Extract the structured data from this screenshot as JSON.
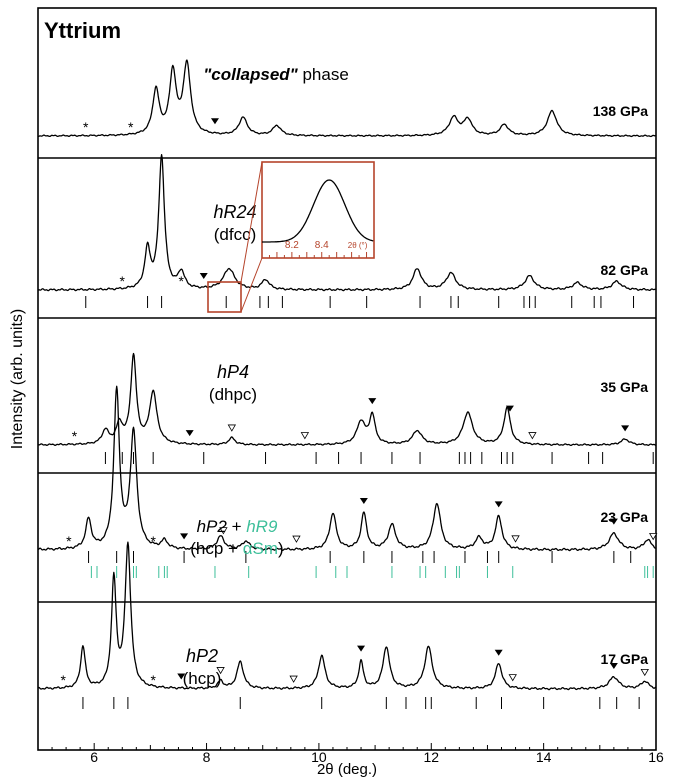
{
  "chart_data": {
    "type": "line",
    "title": "Yttrium",
    "xlabel": "2θ (deg.)",
    "ylabel": "Intensity (arb. units)",
    "xlim": [
      5,
      16
    ],
    "xticks": [
      "6",
      "8",
      "10",
      "12",
      "14",
      "16"
    ],
    "xtick_values": [
      6,
      8,
      10,
      12,
      14,
      16
    ],
    "colors": {
      "line": "#000000",
      "inset": "#b5442b",
      "secondary": "#3dbf9a"
    },
    "panels": [
      {
        "pressure": "138 GPa",
        "phase_label": [
          "\"collapsed\" phase"
        ],
        "baseline": 0,
        "peaks": [
          [
            7.1,
            0.45,
            0.07
          ],
          [
            7.4,
            0.62,
            0.07
          ],
          [
            7.65,
            0.7,
            0.08
          ],
          [
            8.65,
            0.18,
            0.09
          ],
          [
            9.25,
            0.1,
            0.09
          ],
          [
            12.4,
            0.18,
            0.1
          ],
          [
            12.65,
            0.16,
            0.09
          ],
          [
            13.3,
            0.11,
            0.09
          ],
          [
            14.15,
            0.25,
            0.1
          ]
        ],
        "stars": [
          5.85,
          6.65
        ],
        "filled_markers": [
          8.15
        ],
        "open_markers": [],
        "reflections": []
      },
      {
        "pressure": "82 GPa",
        "phase_label": [
          "hR24",
          "(dfcc)"
        ],
        "baseline": 0,
        "peaks": [
          [
            6.95,
            0.28,
            0.06
          ],
          [
            7.2,
            0.95,
            0.06
          ],
          [
            7.55,
            0.12,
            0.07
          ],
          [
            8.4,
            0.15,
            0.12
          ],
          [
            9.05,
            0.07,
            0.08
          ],
          [
            11.75,
            0.15,
            0.09
          ],
          [
            12.35,
            0.12,
            0.1
          ],
          [
            13.75,
            0.1,
            0.1
          ],
          [
            14.6,
            0.05,
            0.1
          ],
          [
            15.3,
            0.06,
            0.1
          ]
        ],
        "stars": [
          6.5,
          7.55
        ],
        "filled_markers": [
          7.95
        ],
        "open_markers": [],
        "reflections": [
          5.85,
          6.95,
          7.2,
          8.35,
          8.95,
          9.1,
          9.35,
          10.2,
          10.85,
          11.8,
          12.35,
          12.48,
          13.2,
          13.65,
          13.75,
          13.85,
          14.5,
          14.9,
          15.02,
          15.6
        ]
      },
      {
        "pressure": "35 GPa",
        "phase_label": [
          "hP4",
          "(dhpc)"
        ],
        "baseline": 0,
        "peaks": [
          [
            6.2,
            0.12,
            0.07
          ],
          [
            6.45,
            0.17,
            0.07
          ],
          [
            6.7,
            0.76,
            0.06
          ],
          [
            7.05,
            0.45,
            0.08
          ],
          [
            8.45,
            0.06,
            0.07
          ],
          [
            10.75,
            0.2,
            0.09
          ],
          [
            10.95,
            0.25,
            0.06
          ],
          [
            11.75,
            0.12,
            0.1
          ],
          [
            12.65,
            0.28,
            0.1
          ],
          [
            13.35,
            0.32,
            0.07
          ],
          [
            15.45,
            0.05,
            0.09
          ]
        ],
        "stars": [
          5.65
        ],
        "filled_markers": [
          7.7,
          10.95,
          13.4,
          15.45
        ],
        "open_markers": [
          8.45,
          9.75,
          13.8
        ],
        "reflections": [
          6.2,
          6.5,
          6.7,
          7.05,
          7.95,
          9.05,
          9.95,
          10.35,
          10.75,
          11.3,
          11.8,
          12.5,
          12.6,
          12.7,
          12.9,
          13.25,
          13.35,
          13.45,
          14.15,
          14.8,
          15.05,
          15.95
        ]
      },
      {
        "pressure": "23 GPa",
        "phase_label": [
          "hP2 + hR9",
          "(hcp + αSm)"
        ],
        "baseline": 0,
        "peaks": [
          [
            5.9,
            0.18,
            0.06
          ],
          [
            6.4,
            0.95,
            0.06
          ],
          [
            6.7,
            0.7,
            0.07
          ],
          [
            7.25,
            0.05,
            0.07
          ],
          [
            8.25,
            0.08,
            0.08
          ],
          [
            8.7,
            0.05,
            0.08
          ],
          [
            10.25,
            0.22,
            0.07
          ],
          [
            10.8,
            0.22,
            0.06
          ],
          [
            11.3,
            0.15,
            0.08
          ],
          [
            12.1,
            0.28,
            0.08
          ],
          [
            12.85,
            0.07,
            0.08
          ],
          [
            13.2,
            0.2,
            0.07
          ],
          [
            15.25,
            0.1,
            0.1
          ],
          [
            15.85,
            0.06,
            0.08
          ]
        ],
        "stars": [
          5.55,
          7.05
        ],
        "filled_markers": [
          7.6,
          10.8,
          13.2,
          15.25
        ],
        "open_markers": [
          8.3,
          9.6,
          13.5,
          15.95
        ],
        "reflections": [
          5.9,
          6.4,
          6.7,
          7.6,
          8.7,
          10.2,
          10.8,
          11.3,
          11.85,
          12.05,
          12.6,
          13.0,
          13.2,
          14.15,
          15.25,
          15.55
        ],
        "secondary_reflections": [
          5.95,
          6.05,
          6.4,
          6.7,
          6.75,
          7.15,
          7.25,
          7.3,
          8.15,
          8.75,
          9.95,
          10.3,
          10.5,
          11.3,
          11.8,
          11.9,
          12.25,
          12.45,
          12.5,
          13.0,
          13.45,
          15.8,
          15.85,
          15.95
        ]
      },
      {
        "pressure": "17 GPa",
        "phase_label": [
          "hP2",
          "(hcp)"
        ],
        "baseline": 0,
        "peaks": [
          [
            5.8,
            0.28,
            0.05
          ],
          [
            6.35,
            0.72,
            0.05
          ],
          [
            6.6,
            0.95,
            0.06
          ],
          [
            8.25,
            0.05,
            0.06
          ],
          [
            8.6,
            0.18,
            0.07
          ],
          [
            10.05,
            0.22,
            0.07
          ],
          [
            10.75,
            0.18,
            0.05
          ],
          [
            11.2,
            0.28,
            0.07
          ],
          [
            11.95,
            0.28,
            0.08
          ],
          [
            13.2,
            0.17,
            0.07
          ],
          [
            15.25,
            0.08,
            0.1
          ],
          [
            15.8,
            0.05,
            0.08
          ]
        ],
        "stars": [
          5.45,
          7.05
        ],
        "filled_markers": [
          7.55,
          10.75,
          13.2,
          15.25
        ],
        "open_markers": [
          8.25,
          9.55,
          13.45,
          15.8
        ],
        "reflections": [
          5.8,
          6.35,
          6.6,
          8.6,
          10.05,
          11.2,
          11.55,
          11.9,
          12.0,
          12.8,
          13.25,
          14.0,
          15.0,
          15.3,
          15.7
        ]
      }
    ],
    "inset": {
      "xlim": [
        8.0,
        8.75
      ],
      "xticks": [
        "8.2",
        "8.4",
        "2θ (°)"
      ],
      "xtick_values": [
        8.2,
        8.4,
        8.6
      ],
      "peak": [
        8.45,
        0.14
      ]
    }
  }
}
